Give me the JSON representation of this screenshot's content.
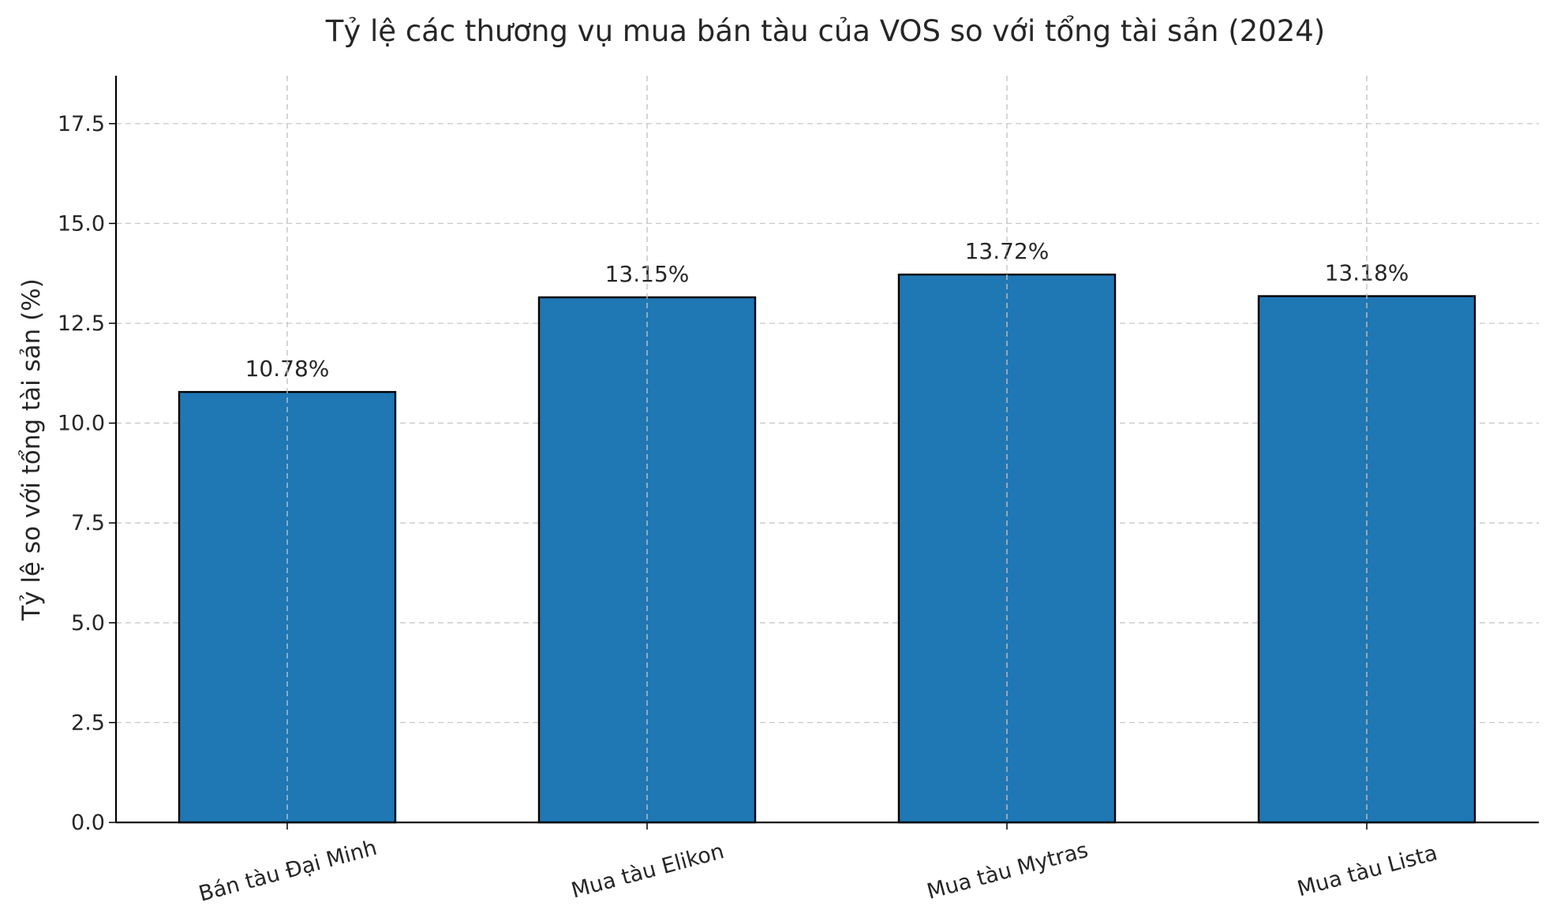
{
  "chart_data": {
    "type": "bar",
    "title": "Tỷ lệ các thương vụ mua bán tàu của VOS so với tổng tài sản (2024)",
    "xlabel": "",
    "ylabel": "Tỷ lệ so với tổng tài sản (%)",
    "categories": [
      "Bán tàu Đại Minh",
      "Mua tàu Elikon",
      "Mua tàu Mytras",
      "Mua tàu Lista"
    ],
    "values": [
      10.78,
      13.15,
      13.72,
      13.18
    ],
    "data_labels": [
      "10.78%",
      "13.15%",
      "13.72%",
      "13.18%"
    ],
    "yticks": [
      "0.0",
      "2.5",
      "5.0",
      "7.5",
      "10.0",
      "12.5",
      "15.0",
      "17.5"
    ],
    "ylim": [
      0,
      18.7
    ],
    "grid": true,
    "legend": "none",
    "bar_color": "#1f77b4",
    "edge_color": "#000000"
  }
}
